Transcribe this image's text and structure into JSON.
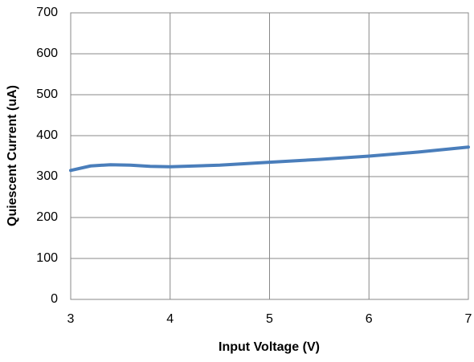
{
  "chart_data": {
    "type": "line",
    "x_label": "Input Voltage (V)",
    "y_label": "Quiescent Current (uA)",
    "x": [
      3,
      3.2,
      3.4,
      3.6,
      3.8,
      4,
      4.5,
      5,
      5.5,
      6,
      6.5,
      7
    ],
    "series": [
      {
        "color": "#4a7ebb",
        "values": [
          315,
          326,
          329,
          328,
          325,
          324,
          328,
          335,
          342,
          350,
          360,
          372
        ]
      }
    ],
    "xlim": [
      3,
      7
    ],
    "xticks": [
      3,
      4,
      5,
      6,
      7
    ],
    "ylim": [
      0,
      700
    ],
    "yticks": [
      0,
      100,
      200,
      300,
      400,
      500,
      600,
      700
    ],
    "grid": true
  }
}
